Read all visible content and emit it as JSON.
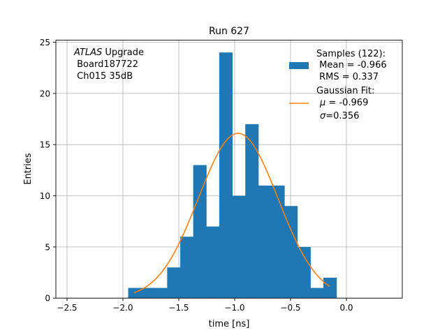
{
  "chart_data": {
    "type": "bar",
    "title": "Run 627",
    "xlabel": "time [ns]",
    "ylabel": "Entries",
    "xlim": [
      -2.6,
      0.5
    ],
    "ylim": [
      0,
      25.2
    ],
    "grid": true,
    "x_ticks": [
      -2.5,
      -2.0,
      -1.5,
      -1.0,
      -0.5,
      0.0
    ],
    "x_tick_labels": [
      "−2.5",
      "−2.0",
      "−1.5",
      "−1.0",
      "−0.5",
      "0.0"
    ],
    "y_ticks": [
      0,
      5,
      10,
      15,
      20,
      25
    ],
    "y_tick_labels": [
      "0",
      "5",
      "10",
      "15",
      "20",
      "25"
    ],
    "bin_edges": [
      -1.953,
      -1.837,
      -1.72,
      -1.604,
      -1.487,
      -1.371,
      -1.254,
      -1.138,
      -1.021,
      -0.905,
      -0.788,
      -0.672,
      -0.555,
      -0.439,
      -0.322,
      -0.206,
      -0.089
    ],
    "counts": [
      1,
      1,
      1,
      3,
      6,
      13,
      7,
      24,
      10,
      17,
      11,
      11,
      9,
      5,
      1,
      2
    ],
    "fit": {
      "mu": -0.969,
      "sigma": 0.356,
      "amplitude": 16.1,
      "x_range": [
        -1.9,
        -0.15
      ]
    },
    "colors": {
      "histogram": "#1f77b4",
      "fit": "#ff7f0e",
      "grid": "#b0b0b0"
    },
    "annotation": {
      "italic": "ATLAS",
      "rest": " Upgrade",
      "line2": " Board187722",
      "line3": " Ch015 35dB"
    },
    "legend": {
      "placement": "upper right",
      "samples": {
        "line1": "Samples (122):",
        "line2": " Mean = -0.966",
        "line3": " RMS = 0.337"
      },
      "fit": {
        "line1": "Gaussian Fit:",
        "mu_symbol": "μ",
        "mu_value": " = -0.969",
        "sigma_symbol": "σ",
        "sigma_value": "=0.356"
      }
    }
  }
}
